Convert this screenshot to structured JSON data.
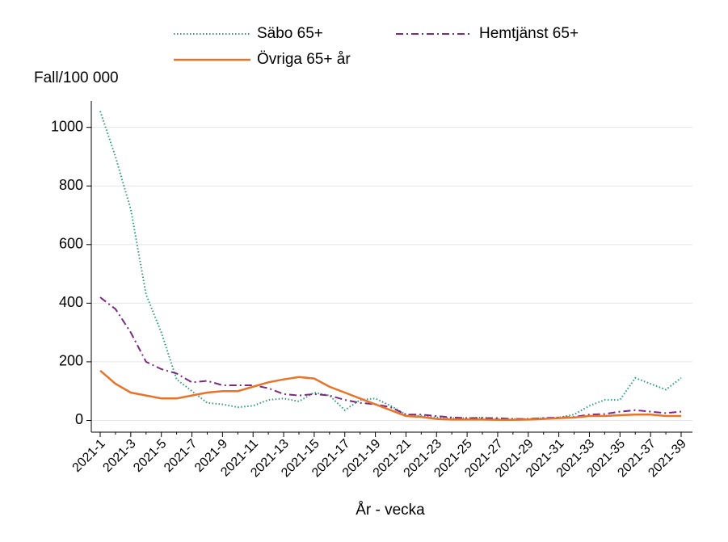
{
  "chart_data": {
    "type": "line",
    "ylabel": "Fall/100 000",
    "xlabel": "År - vecka",
    "categories": [
      "2021-1",
      null,
      "2021-3",
      null,
      "2021-5",
      null,
      "2021-7",
      null,
      "2021-9",
      null,
      "2021-11",
      null,
      "2021-13",
      null,
      "2021-15",
      null,
      "2021-17",
      null,
      "2021-19",
      null,
      "2021-21",
      null,
      "2021-23",
      null,
      "2021-25",
      null,
      "2021-27",
      null,
      "2021-29",
      null,
      "2021-31",
      null,
      "2021-33",
      null,
      "2021-35",
      null,
      "2021-37",
      null,
      "2021-39"
    ],
    "series": [
      {
        "name": "Säbo 65+",
        "color": "#2a9d7f",
        "style": "dotted",
        "values": [
          1055,
          900,
          720,
          430,
          300,
          140,
          100,
          60,
          55,
          45,
          50,
          70,
          75,
          65,
          95,
          85,
          35,
          70,
          75,
          50,
          20,
          15,
          10,
          8,
          8,
          10,
          5,
          5,
          5,
          8,
          10,
          20,
          50,
          70,
          70,
          145,
          125,
          105,
          145
        ]
      },
      {
        "name": "Hemtjänst 65+",
        "color": "#7a2a80",
        "style": "dashdot",
        "values": [
          420,
          380,
          300,
          200,
          175,
          160,
          130,
          135,
          120,
          120,
          120,
          110,
          90,
          85,
          90,
          85,
          70,
          60,
          55,
          45,
          20,
          20,
          15,
          10,
          8,
          8,
          8,
          5,
          5,
          8,
          10,
          12,
          20,
          22,
          30,
          35,
          30,
          25,
          30
        ]
      },
      {
        "name": "Övriga 65+ år",
        "color": "#e8742a",
        "style": "solid",
        "values": [
          170,
          125,
          95,
          85,
          75,
          75,
          85,
          95,
          100,
          100,
          115,
          130,
          140,
          148,
          143,
          115,
          95,
          75,
          55,
          35,
          15,
          12,
          5,
          3,
          3,
          3,
          2,
          2,
          3,
          5,
          8,
          10,
          15,
          15,
          18,
          20,
          20,
          15,
          15
        ]
      }
    ],
    "ylim": [
      -40,
      1090
    ],
    "yticks": [
      0,
      200,
      400,
      600,
      800,
      1000
    ],
    "grid": true
  }
}
